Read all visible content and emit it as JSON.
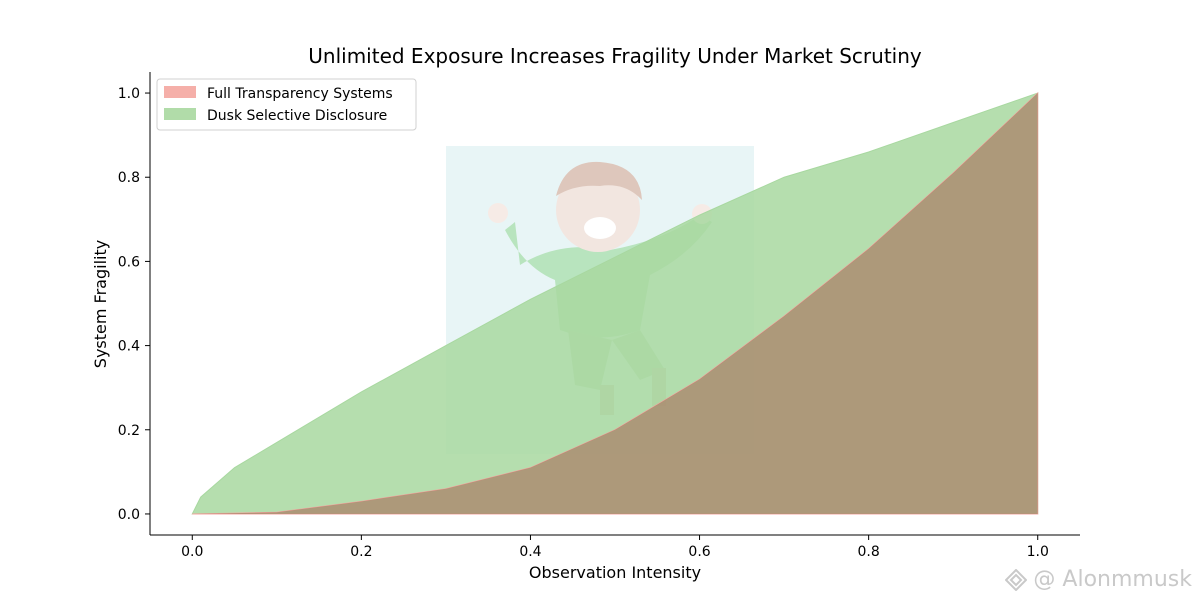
{
  "chart_data": {
    "type": "area",
    "title": "Unlimited Exposure Increases Fragility Under Market Scrutiny",
    "xlabel": "Observation Intensity",
    "ylabel": "System Fragility",
    "xlim": [
      -0.05,
      1.05
    ],
    "ylim": [
      -0.05,
      1.05
    ],
    "xticks": [
      0.0,
      0.2,
      0.4,
      0.6,
      0.8,
      1.0
    ],
    "yticks": [
      0.0,
      0.2,
      0.4,
      0.6,
      0.8,
      1.0
    ],
    "xtick_labels": [
      "0.0",
      "0.2",
      "0.4",
      "0.6",
      "0.8",
      "1.0"
    ],
    "ytick_labels": [
      "0.0",
      "0.2",
      "0.4",
      "0.6",
      "0.8",
      "1.0"
    ],
    "grid": false,
    "legend_position": "upper-left",
    "series": [
      {
        "name": "Full Transparency Systems",
        "color": "#f4a6a0",
        "x": [
          0.0,
          0.1,
          0.2,
          0.3,
          0.4,
          0.5,
          0.6,
          0.7,
          0.8,
          0.9,
          1.0
        ],
        "values": [
          0.0,
          0.004,
          0.03,
          0.06,
          0.11,
          0.2,
          0.32,
          0.47,
          0.63,
          0.81,
          1.0
        ]
      },
      {
        "name": "Dusk Selective Disclosure",
        "color": "#a8d8a0",
        "x": [
          0.0,
          0.01,
          0.05,
          0.1,
          0.2,
          0.3,
          0.4,
          0.5,
          0.6,
          0.7,
          0.8,
          0.9,
          1.0
        ],
        "values": [
          0.0,
          0.04,
          0.11,
          0.17,
          0.29,
          0.4,
          0.51,
          0.61,
          0.71,
          0.8,
          0.86,
          0.93,
          1.0
        ]
      }
    ]
  },
  "watermark": {
    "text": "@ Alonmmusk",
    "icon": "binance-square-logo-icon"
  }
}
